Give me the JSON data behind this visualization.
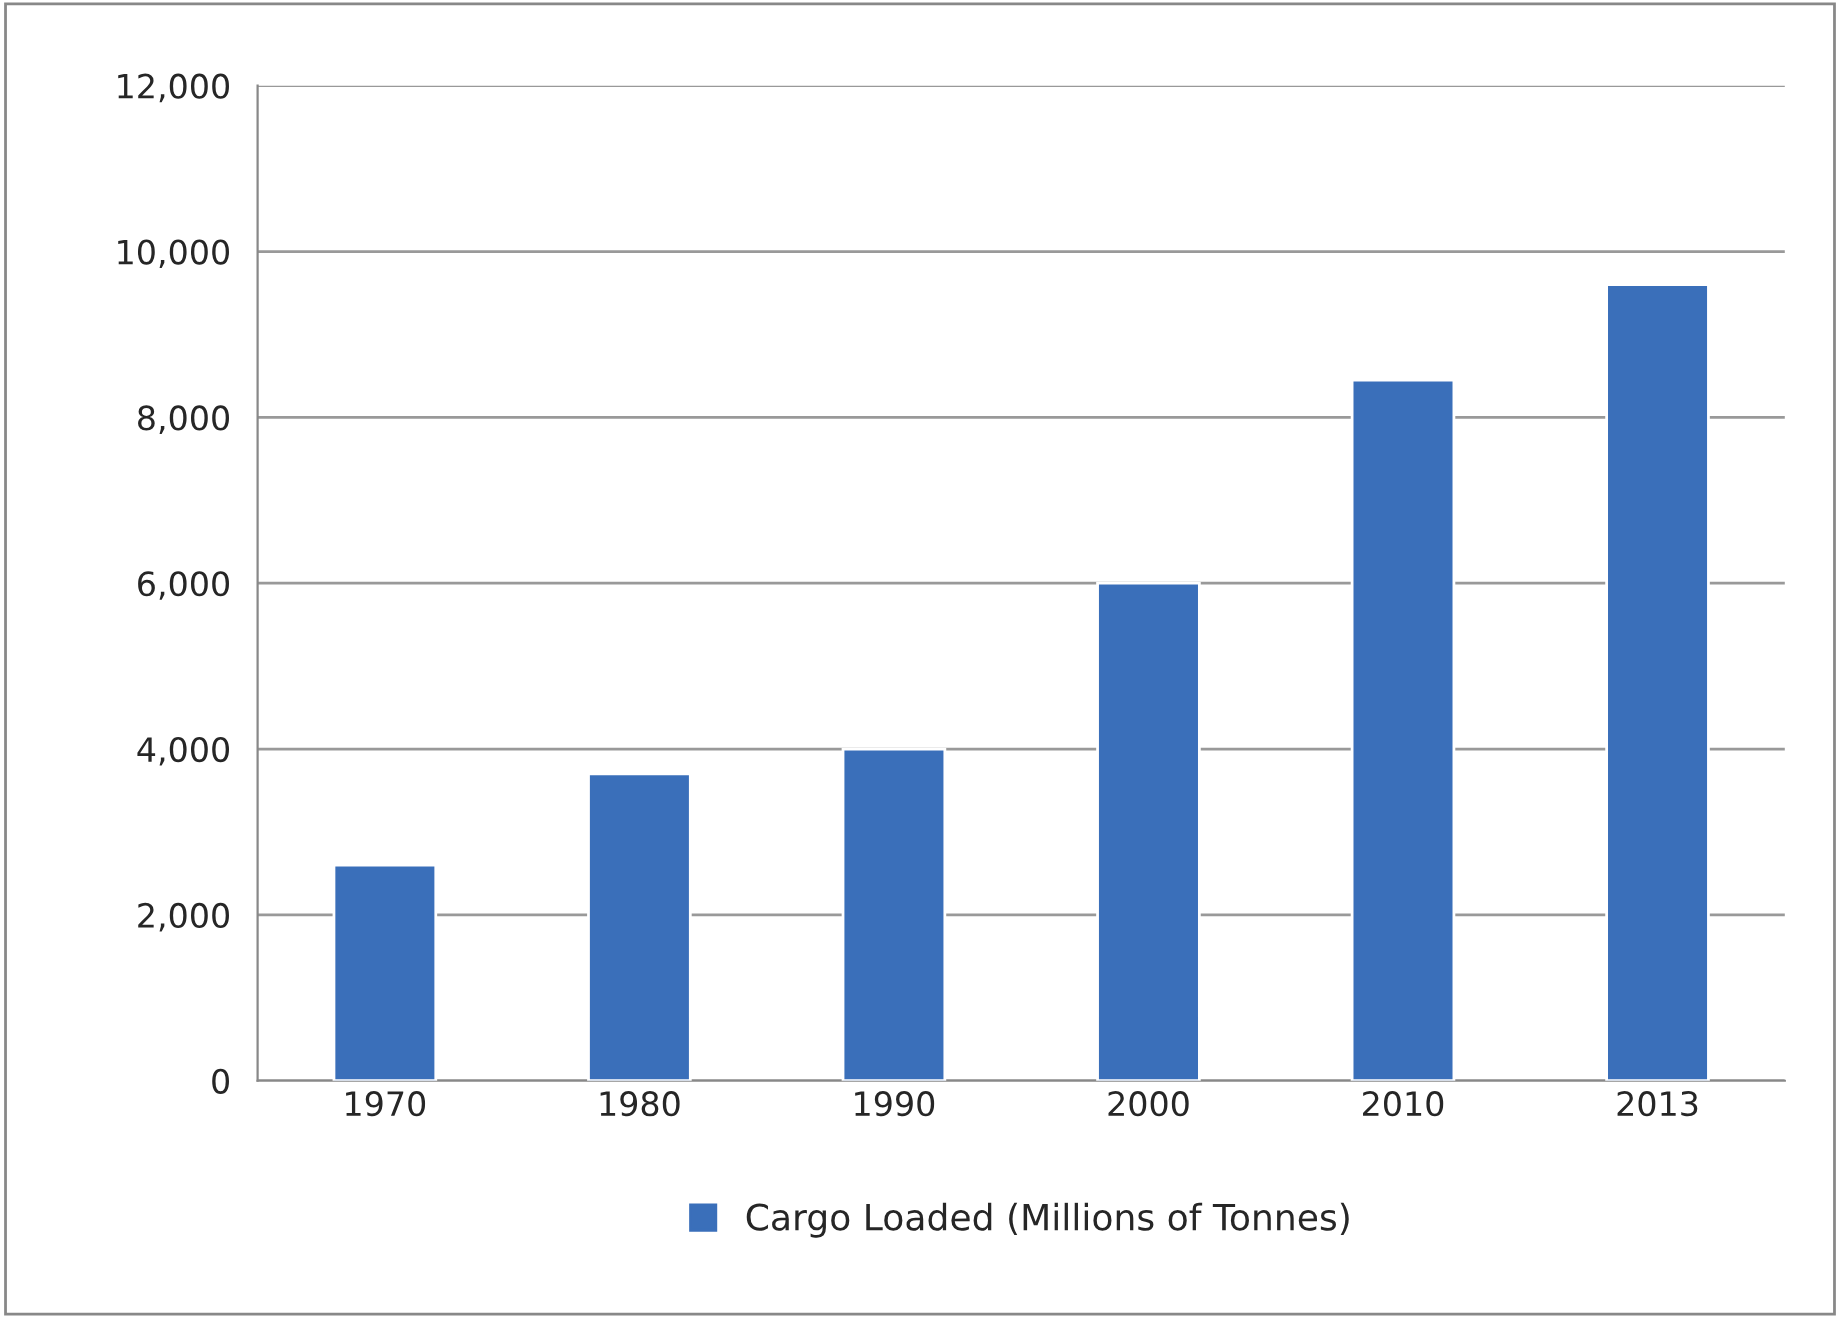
{
  "chart_data": {
    "type": "bar",
    "categories": [
      "1970",
      "1980",
      "1990",
      "2000",
      "2010",
      "2013"
    ],
    "series": [
      {
        "name": "Cargo Loaded (Millions of Tonnes)",
        "color": "#3a6fba",
        "values": [
          2600,
          3700,
          4000,
          6000,
          8450,
          9600
        ]
      }
    ],
    "ylim": [
      0,
      12000
    ],
    "yticks": [
      {
        "value": 0,
        "label": "0"
      },
      {
        "value": 2000,
        "label": "2,000"
      },
      {
        "value": 4000,
        "label": "4,000"
      },
      {
        "value": 6000,
        "label": "6,000"
      },
      {
        "value": 8000,
        "label": "8,000"
      },
      {
        "value": 10000,
        "label": "10,000"
      },
      {
        "value": 12000,
        "label": "12,000"
      }
    ],
    "grid": "y",
    "legend": "bottom"
  }
}
